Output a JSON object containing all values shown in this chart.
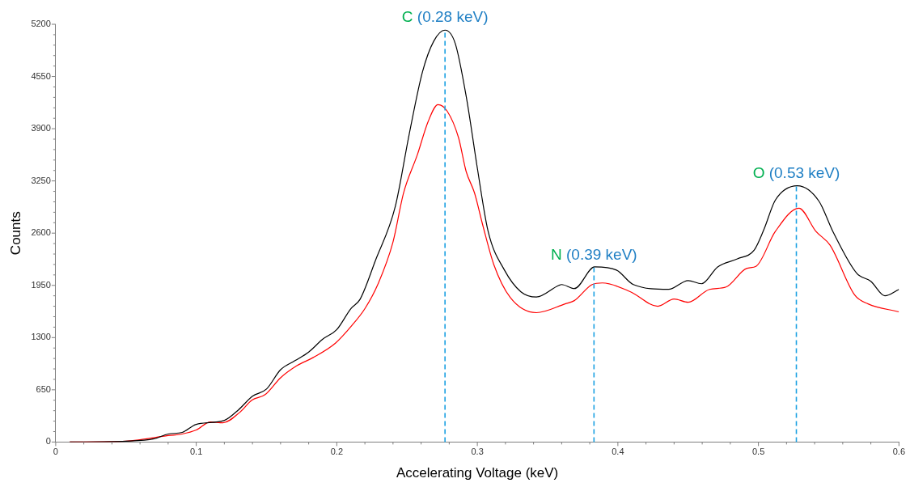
{
  "chart_data": {
    "type": "line",
    "xlabel": "Accelerating Voltage (keV)",
    "ylabel": "Counts",
    "xlim": [
      0,
      0.6
    ],
    "xticks": [
      0,
      {
        "value": 0.02,
        "label": null
      },
      {
        "value": 0.04,
        "label": null
      },
      {
        "value": 0.06,
        "label": null
      },
      {
        "value": 0.08,
        "label": null
      },
      0.1,
      {
        "value": 0.12,
        "label": null
      },
      {
        "value": 0.14,
        "label": null
      },
      {
        "value": 0.16,
        "label": null
      },
      {
        "value": 0.18,
        "label": null
      },
      0.2,
      {
        "value": 0.22,
        "label": null
      },
      {
        "value": 0.24,
        "label": null
      },
      {
        "value": 0.26,
        "label": null
      },
      {
        "value": 0.28,
        "label": null
      },
      0.3,
      {
        "value": 0.32,
        "label": null
      },
      {
        "value": 0.34,
        "label": null
      },
      {
        "value": 0.36,
        "label": null
      },
      {
        "value": 0.38,
        "label": null
      },
      0.4,
      {
        "value": 0.42,
        "label": null
      },
      {
        "value": 0.44,
        "label": null
      },
      {
        "value": 0.46,
        "label": null
      },
      {
        "value": 0.48,
        "label": null
      },
      0.5,
      {
        "value": 0.52,
        "label": null
      },
      {
        "value": 0.54,
        "label": null
      },
      {
        "value": 0.56,
        "label": null
      },
      {
        "value": 0.58,
        "label": null
      },
      0.6
    ],
    "ylim": [
      0,
      5200
    ],
    "yticks": [
      0,
      {
        "value": 130,
        "label": null
      },
      {
        "value": 260,
        "label": null
      },
      {
        "value": 390,
        "label": null
      },
      {
        "value": 520,
        "label": null
      },
      650,
      {
        "value": 780,
        "label": null
      },
      {
        "value": 910,
        "label": null
      },
      {
        "value": 1040,
        "label": null
      },
      {
        "value": 1170,
        "label": null
      },
      1300,
      {
        "value": 1430,
        "label": null
      },
      {
        "value": 1560,
        "label": null
      },
      {
        "value": 1690,
        "label": null
      },
      {
        "value": 1820,
        "label": null
      },
      1950,
      {
        "value": 2080,
        "label": null
      },
      {
        "value": 2210,
        "label": null
      },
      {
        "value": 2340,
        "label": null
      },
      {
        "value": 2470,
        "label": null
      },
      2600,
      {
        "value": 2730,
        "label": null
      },
      {
        "value": 2860,
        "label": null
      },
      {
        "value": 2990,
        "label": null
      },
      {
        "value": 3120,
        "label": null
      },
      3250,
      {
        "value": 3380,
        "label": null
      },
      {
        "value": 3510,
        "label": null
      },
      {
        "value": 3640,
        "label": null
      },
      {
        "value": 3770,
        "label": null
      },
      3900,
      {
        "value": 4030,
        "label": null
      },
      {
        "value": 4160,
        "label": null
      },
      {
        "value": 4290,
        "label": null
      },
      {
        "value": 4420,
        "label": null
      },
      4550,
      {
        "value": 4680,
        "label": null
      },
      {
        "value": 4810,
        "label": null
      },
      {
        "value": 4940,
        "label": null
      },
      {
        "value": 5070,
        "label": null
      },
      5200
    ],
    "grid": false,
    "legend": false,
    "marker": "none",
    "line_style": "solid",
    "series": [
      {
        "color": "#000000",
        "x": [
          0.01,
          0.05,
          0.07,
          0.08,
          0.09,
          0.1,
          0.12,
          0.13,
          0.14,
          0.15,
          0.16,
          0.17,
          0.18,
          0.19,
          0.2,
          0.21,
          0.2165,
          0.2275,
          0.2416,
          0.2515,
          0.261,
          0.269,
          0.277,
          0.2843,
          0.2924,
          0.3,
          0.3077,
          0.3193,
          0.331,
          0.342,
          0.358,
          0.36,
          0.369,
          0.3835,
          0.399,
          0.411,
          0.436,
          0.45,
          0.4595,
          0.471,
          0.485,
          0.497,
          0.504,
          0.512,
          0.5277,
          0.543,
          0.553,
          0.57,
          0.58,
          0.59,
          0.6
        ],
        "values": [
          0,
          10,
          40,
          100,
          120,
          220,
          270,
          400,
          570,
          660,
          900,
          1010,
          1120,
          1280,
          1400,
          1660,
          1775,
          2260,
          2930,
          3830,
          4610,
          4990,
          5127,
          4960,
          4270,
          3410,
          2620,
          2140,
          1870,
          1805,
          1950,
          1960,
          1910,
          2180,
          2140,
          1960,
          1900,
          2010,
          1970,
          2180,
          2280,
          2390,
          2650,
          3010,
          3190,
          3000,
          2620,
          2100,
          2000,
          1820,
          1900
        ]
      },
      {
        "color": "#ff0000",
        "x": [
          0.01,
          0.05,
          0.0607,
          0.08,
          0.09,
          0.1,
          0.11,
          0.119,
          0.131,
          0.1395,
          0.149,
          0.16,
          0.1716,
          0.183,
          0.199,
          0.2107,
          0.22,
          0.2294,
          0.24,
          0.2475,
          0.2574,
          0.265,
          0.272,
          0.2785,
          0.2866,
          0.292,
          0.298,
          0.304,
          0.3117,
          0.3234,
          0.342,
          0.3625,
          0.369,
          0.3817,
          0.389,
          0.409,
          0.4284,
          0.44,
          0.45,
          0.4652,
          0.477,
          0.4915,
          0.4985,
          0.512,
          0.5288,
          0.541,
          0.551,
          0.5685,
          0.578,
          0.6
        ],
        "values": [
          0,
          10,
          30,
          80,
          100,
          150,
          250,
          240,
          370,
          520,
          590,
          800,
          950,
          1050,
          1230,
          1450,
          1660,
          1970,
          2490,
          3100,
          3580,
          3990,
          4200,
          4120,
          3790,
          3370,
          3100,
          2690,
          2210,
          1800,
          1610,
          1720,
          1760,
          1960,
          1980,
          1870,
          1690,
          1780,
          1740,
          1900,
          1930,
          2160,
          2190,
          2620,
          2910,
          2620,
          2450,
          1830,
          1720,
          1620
        ]
      }
    ],
    "ref_lines": [
      {
        "axis": "x",
        "value": 0.277,
        "label": "C (0.28 keV)",
        "color": "#1ba1e2",
        "line_style": "dashed"
      },
      {
        "axis": "x",
        "value": 0.383,
        "label": "N (0.39 keV)",
        "color": "#1ba1e2",
        "line_style": "dashed"
      },
      {
        "axis": "x",
        "value": 0.527,
        "label": "O (0.53 keV)",
        "color": "#1ba1e2",
        "line_style": "dashed"
      }
    ]
  }
}
